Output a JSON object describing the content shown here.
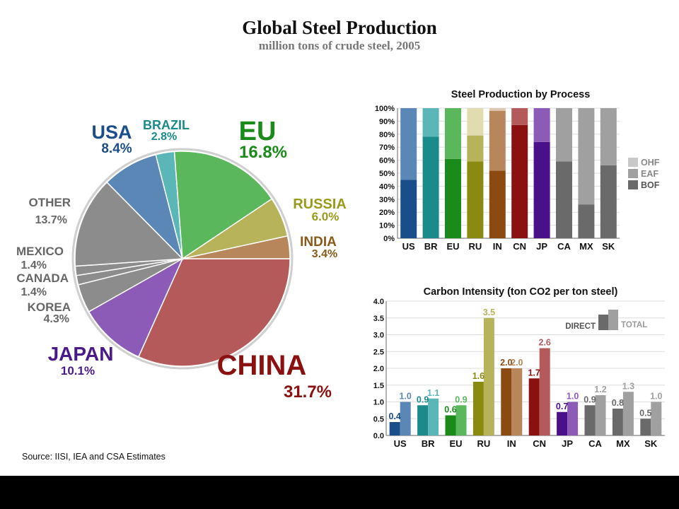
{
  "title": "Global Steel Production",
  "subtitle": "million tons of crude steel, 2005",
  "source": "Source: IISI, IEA and CSA Estimates",
  "chart_data": [
    {
      "type": "pie",
      "slices": [
        {
          "name": "CHINA",
          "value": 31.7,
          "label": "31.7%",
          "color": "#b55a5a",
          "label_color": "#8b1010"
        },
        {
          "name": "JAPAN",
          "value": 10.1,
          "label": "10.1%",
          "color": "#8c5bb7",
          "label_color": "#4a1a8a"
        },
        {
          "name": "KOREA",
          "value": 4.3,
          "label": "4.3%",
          "color": "#8c8c8c",
          "label_color": "#666666"
        },
        {
          "name": "CANADA",
          "value": 1.4,
          "label": "1.4%",
          "color": "#8c8c8c",
          "label_color": "#666666"
        },
        {
          "name": "MEXICO",
          "value": 1.4,
          "label": "1.4%",
          "color": "#8c8c8c",
          "label_color": "#666666"
        },
        {
          "name": "OTHER",
          "value": 13.7,
          "label": "13.7%",
          "color": "#8c8c8c",
          "label_color": "#666666"
        },
        {
          "name": "USA",
          "value": 8.4,
          "label": "8.4%",
          "color": "#5b87b7",
          "label_color": "#1a4e8a"
        },
        {
          "name": "BRAZIL",
          "value": 2.8,
          "label": "2.8%",
          "color": "#5bb7b7",
          "label_color": "#1a8a8a"
        },
        {
          "name": "EU",
          "value": 16.8,
          "label": "16.8%",
          "color": "#5bb75b",
          "label_color": "#1a8a1a"
        },
        {
          "name": "RUSSIA",
          "value": 6.0,
          "label": "6.0%",
          "color": "#b7b35b",
          "label_color": "#9a9a1a"
        },
        {
          "name": "INDIA",
          "value": 3.4,
          "label": "3.4%",
          "color": "#b7875b",
          "label_color": "#8a5a1a"
        }
      ]
    },
    {
      "type": "bar",
      "stacked": true,
      "title": "Steel Production by Process",
      "categories": [
        "US",
        "BR",
        "EU",
        "RU",
        "IN",
        "CN",
        "JP",
        "CA",
        "MX",
        "SK"
      ],
      "series": [
        {
          "name": "BOF",
          "values": [
            45,
            78,
            61,
            59,
            52,
            87,
            74,
            59,
            26,
            56
          ]
        },
        {
          "name": "EAF",
          "values": [
            55,
            22,
            39,
            20,
            46,
            13,
            26,
            41,
            74,
            44
          ]
        },
        {
          "name": "OHF",
          "values": [
            0,
            0,
            0,
            21,
            2,
            0,
            0,
            0,
            0,
            0
          ]
        }
      ],
      "ylim": [
        0,
        100
      ],
      "yticks": [
        "0%",
        "10%",
        "20%",
        "30%",
        "40%",
        "50%",
        "60%",
        "70%",
        "80%",
        "90%",
        "100%"
      ],
      "legend": [
        "OHF",
        "EAF",
        "BOF"
      ],
      "legend_colors": [
        "#c8c8c8",
        "#a0a0a0",
        "#6a6a6a"
      ],
      "legend_position": "right",
      "category_colors": [
        [
          "#1a4e8a",
          "#5b87b7",
          "#b0c8e0"
        ],
        [
          "#1a8a8a",
          "#5bb7b7",
          "#b0e0e0"
        ],
        [
          "#1a8a1a",
          "#5bb75b",
          "#b0e0b0"
        ],
        [
          "#8a8a10",
          "#b7b35b",
          "#e0dcb0"
        ],
        [
          "#8a4a10",
          "#b7875b",
          "#e0c8b0"
        ],
        [
          "#8b1010",
          "#b55a5a",
          "#e0b0b0"
        ],
        [
          "#4a108a",
          "#8c5bb7",
          "#c8b0e0"
        ],
        [
          "#6a6a6a",
          "#a0a0a0",
          "#d0d0d0"
        ],
        [
          "#6a6a6a",
          "#a0a0a0",
          "#d0d0d0"
        ],
        [
          "#6a6a6a",
          "#a0a0a0",
          "#d0d0d0"
        ]
      ]
    },
    {
      "type": "bar",
      "title": "Carbon Intensity (ton CO2 per ton steel)",
      "categories": [
        "US",
        "BR",
        "EU",
        "RU",
        "IN",
        "CN",
        "JP",
        "CA",
        "MX",
        "SK"
      ],
      "series": [
        {
          "name": "DIRECT",
          "values": [
            0.4,
            0.9,
            0.6,
            1.6,
            2.0,
            1.7,
            0.7,
            0.9,
            0.8,
            0.5
          ],
          "labels": [
            "0.4",
            "0.9",
            "0.6",
            "1.6",
            "2.0",
            "1.7",
            "0.7",
            "0.9",
            "0.8",
            "0.5"
          ]
        },
        {
          "name": "TOTAL",
          "values": [
            1.0,
            1.1,
            0.9,
            3.5,
            2.0,
            2.6,
            1.0,
            1.2,
            1.3,
            1.0
          ],
          "labels": [
            "1.0",
            "1.1",
            "0.9",
            "3.5",
            "2.0",
            "2.6",
            "1.0",
            "1.2",
            "1.3",
            "1.0"
          ]
        }
      ],
      "ylim": [
        0,
        4.0
      ],
      "yticks": [
        "0.0",
        "0.5",
        "1.0",
        "1.5",
        "2.0",
        "2.5",
        "3.0",
        "3.5",
        "4.0"
      ],
      "legend": [
        "DIRECT",
        "TOTAL"
      ],
      "legend_position": "top-right",
      "direct_colors": [
        "#1a4e8a",
        "#1a8a8a",
        "#1a8a1a",
        "#8a8a10",
        "#8a4a10",
        "#8b1010",
        "#4a108a",
        "#6a6a6a",
        "#6a6a6a",
        "#6a6a6a"
      ],
      "total_colors": [
        "#5b87b7",
        "#5bb7b7",
        "#5bb75b",
        "#b7b35b",
        "#b7875b",
        "#b55a5a",
        "#8c5bb7",
        "#a0a0a0",
        "#a0a0a0",
        "#a0a0a0"
      ]
    }
  ]
}
